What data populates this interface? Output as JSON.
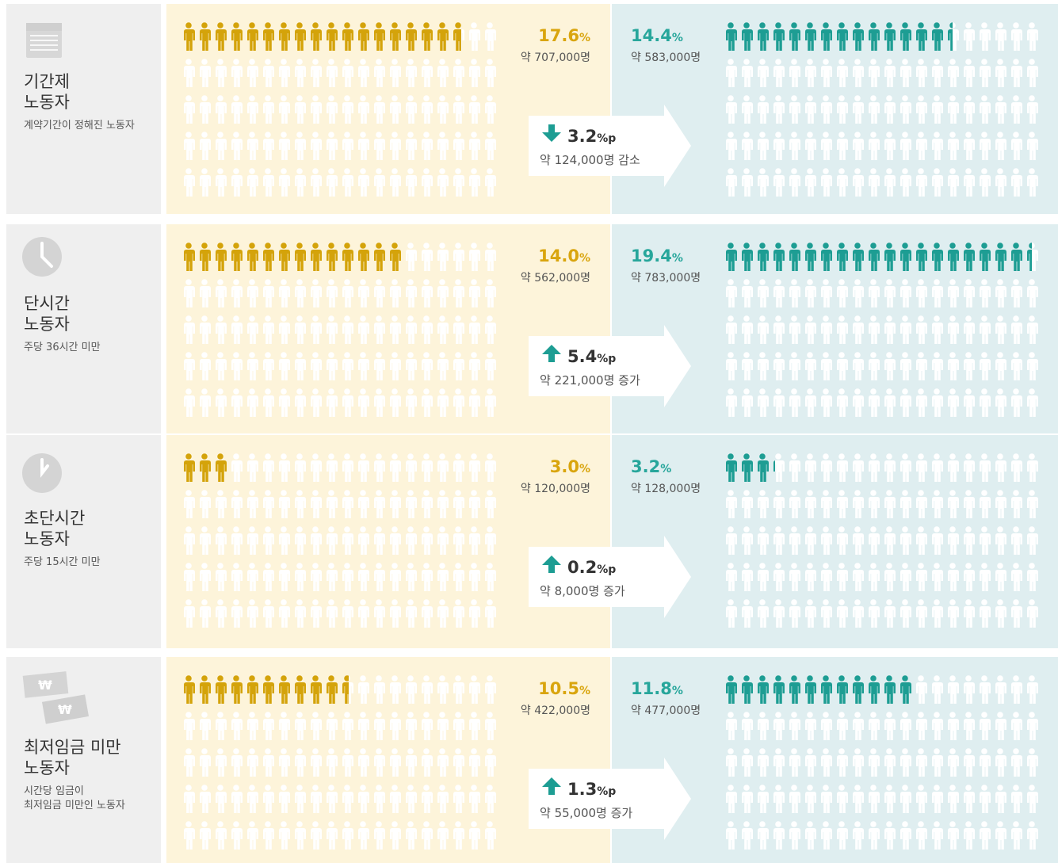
{
  "unit_percent": "%",
  "unit_point": "%p",
  "sections": [
    {
      "title": [
        "기간제",
        "노동자"
      ],
      "subtitle": [
        "계약기간이 정해진 노동자"
      ],
      "before": {
        "value": 17.6,
        "count": "약 707,000명"
      },
      "after": {
        "value": 14.4,
        "count": "약 583,000명"
      },
      "change": {
        "value": 3.2,
        "direction": "down",
        "note": "약 124,000명 감소"
      }
    },
    {
      "title": [
        "단시간",
        "노동자"
      ],
      "subtitle": [
        "주당 36시간 미만"
      ],
      "before": {
        "value": 14.0,
        "label": "14.0",
        "count": "약 562,000명"
      },
      "after": {
        "value": 19.4,
        "count": "약 783,000명"
      },
      "change": {
        "value": 5.4,
        "direction": "up",
        "note": "약 221,000명 증가"
      }
    },
    {
      "title": [
        "초단시간",
        "노동자"
      ],
      "subtitle": [
        "주당 15시간 미만"
      ],
      "before": {
        "value": 3.0,
        "label": "3.0",
        "count": "약 120,000명"
      },
      "after": {
        "value": 3.2,
        "count": "약 128,000명"
      },
      "change": {
        "value": 0.2,
        "direction": "up",
        "note": "약 8,000명 증가"
      }
    },
    {
      "title": [
        "최저임금 미만",
        "노동자"
      ],
      "subtitle": [
        "시간당 임금이",
        "최저임금 미만인 노동자"
      ],
      "icon_text": "₩",
      "before": {
        "value": 10.5,
        "count": "약 422,000명"
      },
      "after": {
        "value": 11.8,
        "count": "약 477,000명"
      },
      "change": {
        "value": 1.3,
        "direction": "up",
        "note": "약 55,000명 증가"
      }
    }
  ]
}
